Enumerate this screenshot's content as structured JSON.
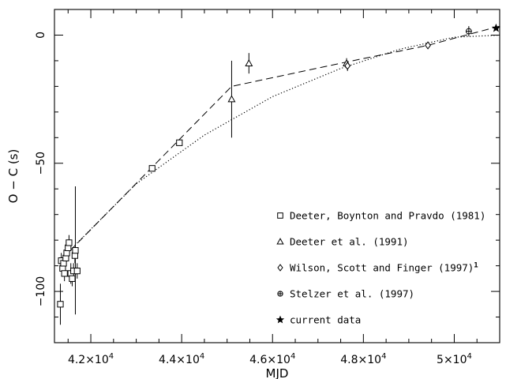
{
  "chart_data": {
    "type": "scatter",
    "title": "",
    "xlabel": "MJD",
    "ylabel": "O − C (s)",
    "xlim": [
      41200,
      51000
    ],
    "ylim": [
      -120,
      10
    ],
    "grid": false,
    "legend_position": "lower-right",
    "x_ticks": [
      {
        "value": 42000,
        "mantissa": "4.2",
        "exp": "4"
      },
      {
        "value": 44000,
        "mantissa": "4.4",
        "exp": "4"
      },
      {
        "value": 46000,
        "mantissa": "4.6",
        "exp": "4"
      },
      {
        "value": 48000,
        "mantissa": "4.8",
        "exp": "4"
      },
      {
        "value": 50000,
        "mantissa": "5",
        "exp": "4"
      }
    ],
    "y_ticks": [
      {
        "value": 0,
        "label": "0"
      },
      {
        "value": -50,
        "label": "−50"
      },
      {
        "value": -100,
        "label": "−100"
      }
    ],
    "series": [
      {
        "name": "Deeter, Boynton and Pravdo (1981)",
        "marker": "square",
        "points": [
          {
            "x": 41330,
            "y": -105,
            "err": 8
          },
          {
            "x": 41350,
            "y": -88,
            "err": 3
          },
          {
            "x": 41380,
            "y": -91,
            "err": 3
          },
          {
            "x": 41400,
            "y": -89,
            "err": 3
          },
          {
            "x": 41420,
            "y": -93,
            "err": 3
          },
          {
            "x": 41450,
            "y": -87,
            "err": 3
          },
          {
            "x": 41470,
            "y": -85,
            "err": 3
          },
          {
            "x": 41500,
            "y": -83,
            "err": 3
          },
          {
            "x": 41520,
            "y": -81,
            "err": 3
          },
          {
            "x": 41560,
            "y": -93,
            "err": 4
          },
          {
            "x": 41590,
            "y": -95,
            "err": 3
          },
          {
            "x": 41620,
            "y": -92,
            "err": 3
          },
          {
            "x": 41650,
            "y": -86,
            "err": 3
          },
          {
            "x": 41660,
            "y": -84,
            "err": 25
          },
          {
            "x": 41700,
            "y": -92,
            "err": 3
          },
          {
            "x": 43350,
            "y": -52,
            "err": 1
          },
          {
            "x": 43950,
            "y": -42,
            "err": 1
          }
        ]
      },
      {
        "name": "Deeter et al. (1991)",
        "marker": "triangle",
        "points": [
          {
            "x": 45100,
            "y": -25,
            "err": 15
          },
          {
            "x": 45480,
            "y": -11,
            "err": 4
          },
          {
            "x": 47630,
            "y": -11,
            "err": 2
          }
        ]
      },
      {
        "name": "Wilson, Scott and Finger (1997)",
        "name_sup": "1",
        "marker": "diamond",
        "points": [
          {
            "x": 47650,
            "y": -12,
            "err": 2
          },
          {
            "x": 49420,
            "y": -4,
            "err": 1
          }
        ]
      },
      {
        "name": "Stelzer et al. (1997)",
        "marker": "circle",
        "points": [
          {
            "x": 50320,
            "y": 1.5,
            "err": 2
          }
        ]
      },
      {
        "name": "current data",
        "marker": "star",
        "points": [
          {
            "x": 50920,
            "y": 2.7,
            "err": 0
          }
        ]
      }
    ],
    "fits": [
      {
        "style": "dashed",
        "points": [
          [
            41550,
            -84
          ],
          [
            45100,
            -20
          ],
          [
            47630,
            -10.5
          ],
          [
            49420,
            -4
          ],
          [
            51000,
            3.5
          ]
        ]
      },
      {
        "style": "dotted",
        "points": [
          [
            41650,
            -82
          ],
          [
            43000,
            -58
          ],
          [
            44500,
            -39
          ],
          [
            46000,
            -24
          ],
          [
            47500,
            -13
          ],
          [
            48800,
            -5.5
          ],
          [
            50000,
            -0.8
          ],
          [
            51000,
            0
          ]
        ]
      }
    ]
  }
}
